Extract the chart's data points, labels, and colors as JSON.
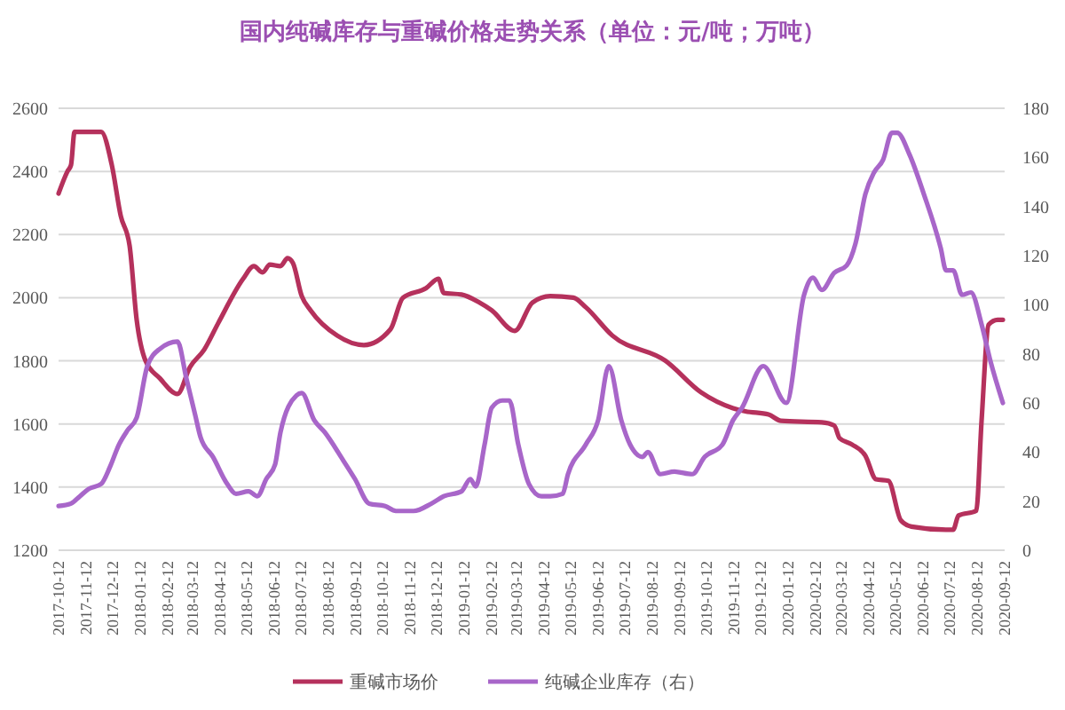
{
  "chart_data": {
    "type": "line",
    "title": "国内纯碱库存与重碱价格走势关系（单位：元/吨；万吨）",
    "xlim": [
      "2017-10-12",
      "2020-09-12"
    ],
    "xticks": [
      "2017-10-12",
      "2017-11-12",
      "2017-12-12",
      "2018-01-12",
      "2018-02-12",
      "2018-03-12",
      "2018-04-12",
      "2018-05-12",
      "2018-06-12",
      "2018-07-12",
      "2018-08-12",
      "2018-09-12",
      "2018-10-12",
      "2018-11-12",
      "2018-12-12",
      "2019-01-12",
      "2019-02-12",
      "2019-03-12",
      "2019-04-12",
      "2019-05-12",
      "2019-06-12",
      "2019-07-12",
      "2019-08-12",
      "2019-09-12",
      "2019-10-12",
      "2019-11-12",
      "2019-12-12",
      "2020-01-12",
      "2020-02-12",
      "2020-03-12",
      "2020-04-12",
      "2020-05-12",
      "2020-06-12",
      "2020-07-12",
      "2020-08-12",
      "2020-09-12"
    ],
    "ylim": [
      1200,
      2600
    ],
    "yticks": [
      1200,
      1400,
      1600,
      1800,
      2000,
      2200,
      2400,
      2600
    ],
    "y2lim": [
      0,
      180
    ],
    "y2ticks": [
      0,
      20,
      40,
      60,
      80,
      100,
      120,
      140,
      160,
      180
    ],
    "grid": "y",
    "legend": "bottom",
    "marker": "none",
    "line_style": "solid",
    "series": [
      {
        "name": "重碱市场价",
        "color": "#b5315c",
        "x": [
          "2017-10-12",
          "2017-10-22",
          "2017-10-26",
          "2017-10-30",
          "2017-11-29",
          "2017-12-11",
          "2017-12-21",
          "2017-12-31",
          "2018-01-08",
          "2018-01-18",
          "2018-02-03",
          "2018-02-23",
          "2018-03-09",
          "2018-03-25",
          "2018-04-10",
          "2018-05-08",
          "2018-05-20",
          "2018-05-30",
          "2018-06-07",
          "2018-06-19",
          "2018-06-27",
          "2018-07-03",
          "2018-07-13",
          "2018-07-23",
          "2018-08-22",
          "2018-09-21",
          "2018-10-21",
          "2018-11-04",
          "2018-11-30",
          "2018-12-14",
          "2018-12-20",
          "2019-01-09",
          "2019-01-29",
          "2019-02-12",
          "2019-03-10",
          "2019-03-30",
          "2019-04-19",
          "2019-05-15",
          "2019-05-29",
          "2019-06-28",
          "2019-08-27",
          "2019-10-06",
          "2019-11-11",
          "2019-11-25",
          "2019-12-21",
          "2020-01-04",
          "2020-02-19",
          "2020-03-04",
          "2020-03-10",
          "2020-03-24",
          "2020-04-08",
          "2020-04-20",
          "2020-05-04",
          "2020-05-18",
          "2020-05-30",
          "2020-07-08",
          "2020-07-16",
          "2020-07-22",
          "2020-08-11",
          "2020-08-17",
          "2020-08-25",
          "2020-09-04",
          "2020-09-10"
        ],
        "values": [
          2330,
          2400,
          2420,
          2525,
          2525,
          2420,
          2260,
          2165,
          1930,
          1800,
          1745,
          1695,
          1780,
          1835,
          1920,
          2060,
          2100,
          2080,
          2105,
          2100,
          2125,
          2110,
          2005,
          1960,
          1880,
          1850,
          1900,
          2000,
          2030,
          2060,
          2015,
          2010,
          1985,
          1960,
          1895,
          1985,
          2005,
          2000,
          1970,
          1880,
          1800,
          1700,
          1650,
          1640,
          1630,
          1610,
          1605,
          1595,
          1555,
          1535,
          1500,
          1425,
          1420,
          1295,
          1275,
          1265,
          1265,
          1310,
          1325,
          1610,
          1915,
          1930,
          1930
        ]
      },
      {
        "name": "纯碱企业库存（右）",
        "color": "#a866c9",
        "axis": "y2",
        "x": [
          "2017-10-12",
          "2017-10-26",
          "2017-11-05",
          "2017-11-15",
          "2017-11-29",
          "2017-12-09",
          "2017-12-19",
          "2017-12-29",
          "2018-01-08",
          "2018-01-20",
          "2018-02-03",
          "2018-02-23",
          "2018-03-05",
          "2018-03-15",
          "2018-03-21",
          "2018-04-04",
          "2018-04-20",
          "2018-04-30",
          "2018-05-14",
          "2018-05-24",
          "2018-06-03",
          "2018-06-13",
          "2018-06-19",
          "2018-07-07",
          "2018-07-13",
          "2018-07-27",
          "2018-08-08",
          "2018-08-28",
          "2018-09-11",
          "2018-09-27",
          "2018-10-15",
          "2018-10-27",
          "2018-11-16",
          "2018-12-06",
          "2018-12-20",
          "2019-01-09",
          "2019-01-19",
          "2019-01-25",
          "2019-02-04",
          "2019-02-12",
          "2019-02-24",
          "2019-03-04",
          "2019-03-14",
          "2019-03-26",
          "2019-04-09",
          "2019-04-19",
          "2019-05-03",
          "2019-05-09",
          "2019-05-29",
          "2019-06-12",
          "2019-06-24",
          "2019-07-08",
          "2019-07-18",
          "2019-08-01",
          "2019-08-07",
          "2019-08-21",
          "2019-09-06",
          "2019-09-26",
          "2019-10-10",
          "2019-10-30",
          "2019-11-11",
          "2019-11-21",
          "2019-12-15",
          "2020-01-10",
          "2020-01-30",
          "2020-02-09",
          "2020-02-19",
          "2020-03-04",
          "2020-03-18",
          "2020-03-28",
          "2020-04-08",
          "2020-04-18",
          "2020-04-28",
          "2020-05-08",
          "2020-05-14",
          "2020-05-28",
          "2020-06-13",
          "2020-07-02",
          "2020-07-08",
          "2020-07-16",
          "2020-07-26",
          "2020-08-05",
          "2020-08-17",
          "2020-08-27",
          "2020-09-10"
        ],
        "values": [
          18,
          19,
          22,
          25,
          27,
          34,
          43,
          49,
          54,
          75,
          82,
          85,
          70,
          55,
          46,
          38,
          27,
          23,
          24,
          22,
          29,
          35,
          48,
          63,
          64,
          53,
          48,
          37,
          29,
          19,
          18,
          16,
          16,
          19,
          22,
          24,
          29,
          26,
          43,
          58,
          61,
          61,
          43,
          27,
          22,
          22,
          23,
          31,
          43,
          53,
          75,
          53,
          43,
          38,
          40,
          31,
          32,
          31,
          38,
          43,
          53,
          58,
          75,
          60,
          104,
          111,
          106,
          113,
          116,
          125,
          145,
          154,
          159,
          170,
          170,
          161,
          145,
          123,
          114,
          114,
          104,
          105,
          92,
          77,
          60
        ]
      }
    ]
  }
}
